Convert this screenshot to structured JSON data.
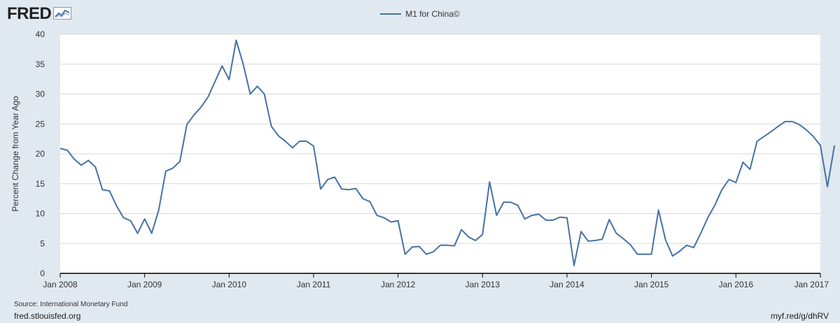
{
  "brand": {
    "logo_text": "FRED",
    "logo_icon": "fred-graph-icon"
  },
  "colors": {
    "background": "#e1e9f0",
    "plot_background": "#ffffff",
    "series": "#4572a7",
    "gridline": "#d8d8d8",
    "axis": "#000000"
  },
  "footer": {
    "source": "Source: International Monetary Fund",
    "site": "fred.stlouisfed.org",
    "short_link": "myf.red/g/dhRV"
  },
  "chart_data": {
    "type": "line",
    "title": "",
    "xlabel": "",
    "ylabel": "Percent Change from Year Ago",
    "ylim": [
      0,
      40
    ],
    "yticks": [
      0,
      5,
      10,
      15,
      20,
      25,
      30,
      35,
      40
    ],
    "xlim": [
      "2008-01",
      "2017-01"
    ],
    "xticks": [
      "Jan 2008",
      "Jan 2009",
      "Jan 2010",
      "Jan 2011",
      "Jan 2012",
      "Jan 2013",
      "Jan 2014",
      "Jan 2015",
      "Jan 2016",
      "Jan 2017"
    ],
    "grid": true,
    "legend_position": "top-center",
    "series": [
      {
        "name": "M1 for China©",
        "color": "#4572a7",
        "frequency": "monthly",
        "start": "2008-01",
        "values": [
          20.9,
          20.6,
          19.1,
          18.1,
          18.9,
          17.8,
          14.0,
          13.8,
          11.3,
          9.3,
          8.8,
          6.7,
          9.1,
          6.7,
          10.6,
          17.1,
          17.6,
          18.7,
          24.9,
          26.5,
          27.8,
          29.5,
          32.1,
          34.7,
          32.4,
          39.0,
          35.0,
          30.0,
          31.3,
          30.0,
          24.6,
          23.0,
          22.1,
          21.0,
          22.1,
          22.1,
          21.3,
          14.1,
          15.7,
          16.1,
          14.1,
          14.0,
          14.2,
          12.5,
          12.0,
          9.7,
          9.3,
          8.6,
          8.8,
          3.2,
          4.4,
          4.5,
          3.2,
          3.6,
          4.7,
          4.7,
          4.6,
          7.3,
          6.1,
          5.5,
          6.5,
          15.3,
          9.7,
          11.9,
          11.9,
          11.4,
          9.1,
          9.7,
          9.9,
          8.9,
          8.9,
          9.4,
          9.3,
          1.3,
          7.0,
          5.4,
          5.5,
          5.7,
          9.0,
          6.7,
          5.8,
          4.8,
          3.2,
          3.2,
          3.2,
          10.6,
          5.6,
          2.9,
          3.7,
          4.7,
          4.3,
          6.7,
          9.3,
          11.4,
          14.0,
          15.7,
          15.2,
          18.6,
          17.4,
          22.1,
          22.9,
          23.7,
          24.6,
          25.4,
          25.4,
          24.9,
          24.0,
          22.9,
          21.4,
          14.5,
          21.4
        ]
      }
    ]
  }
}
